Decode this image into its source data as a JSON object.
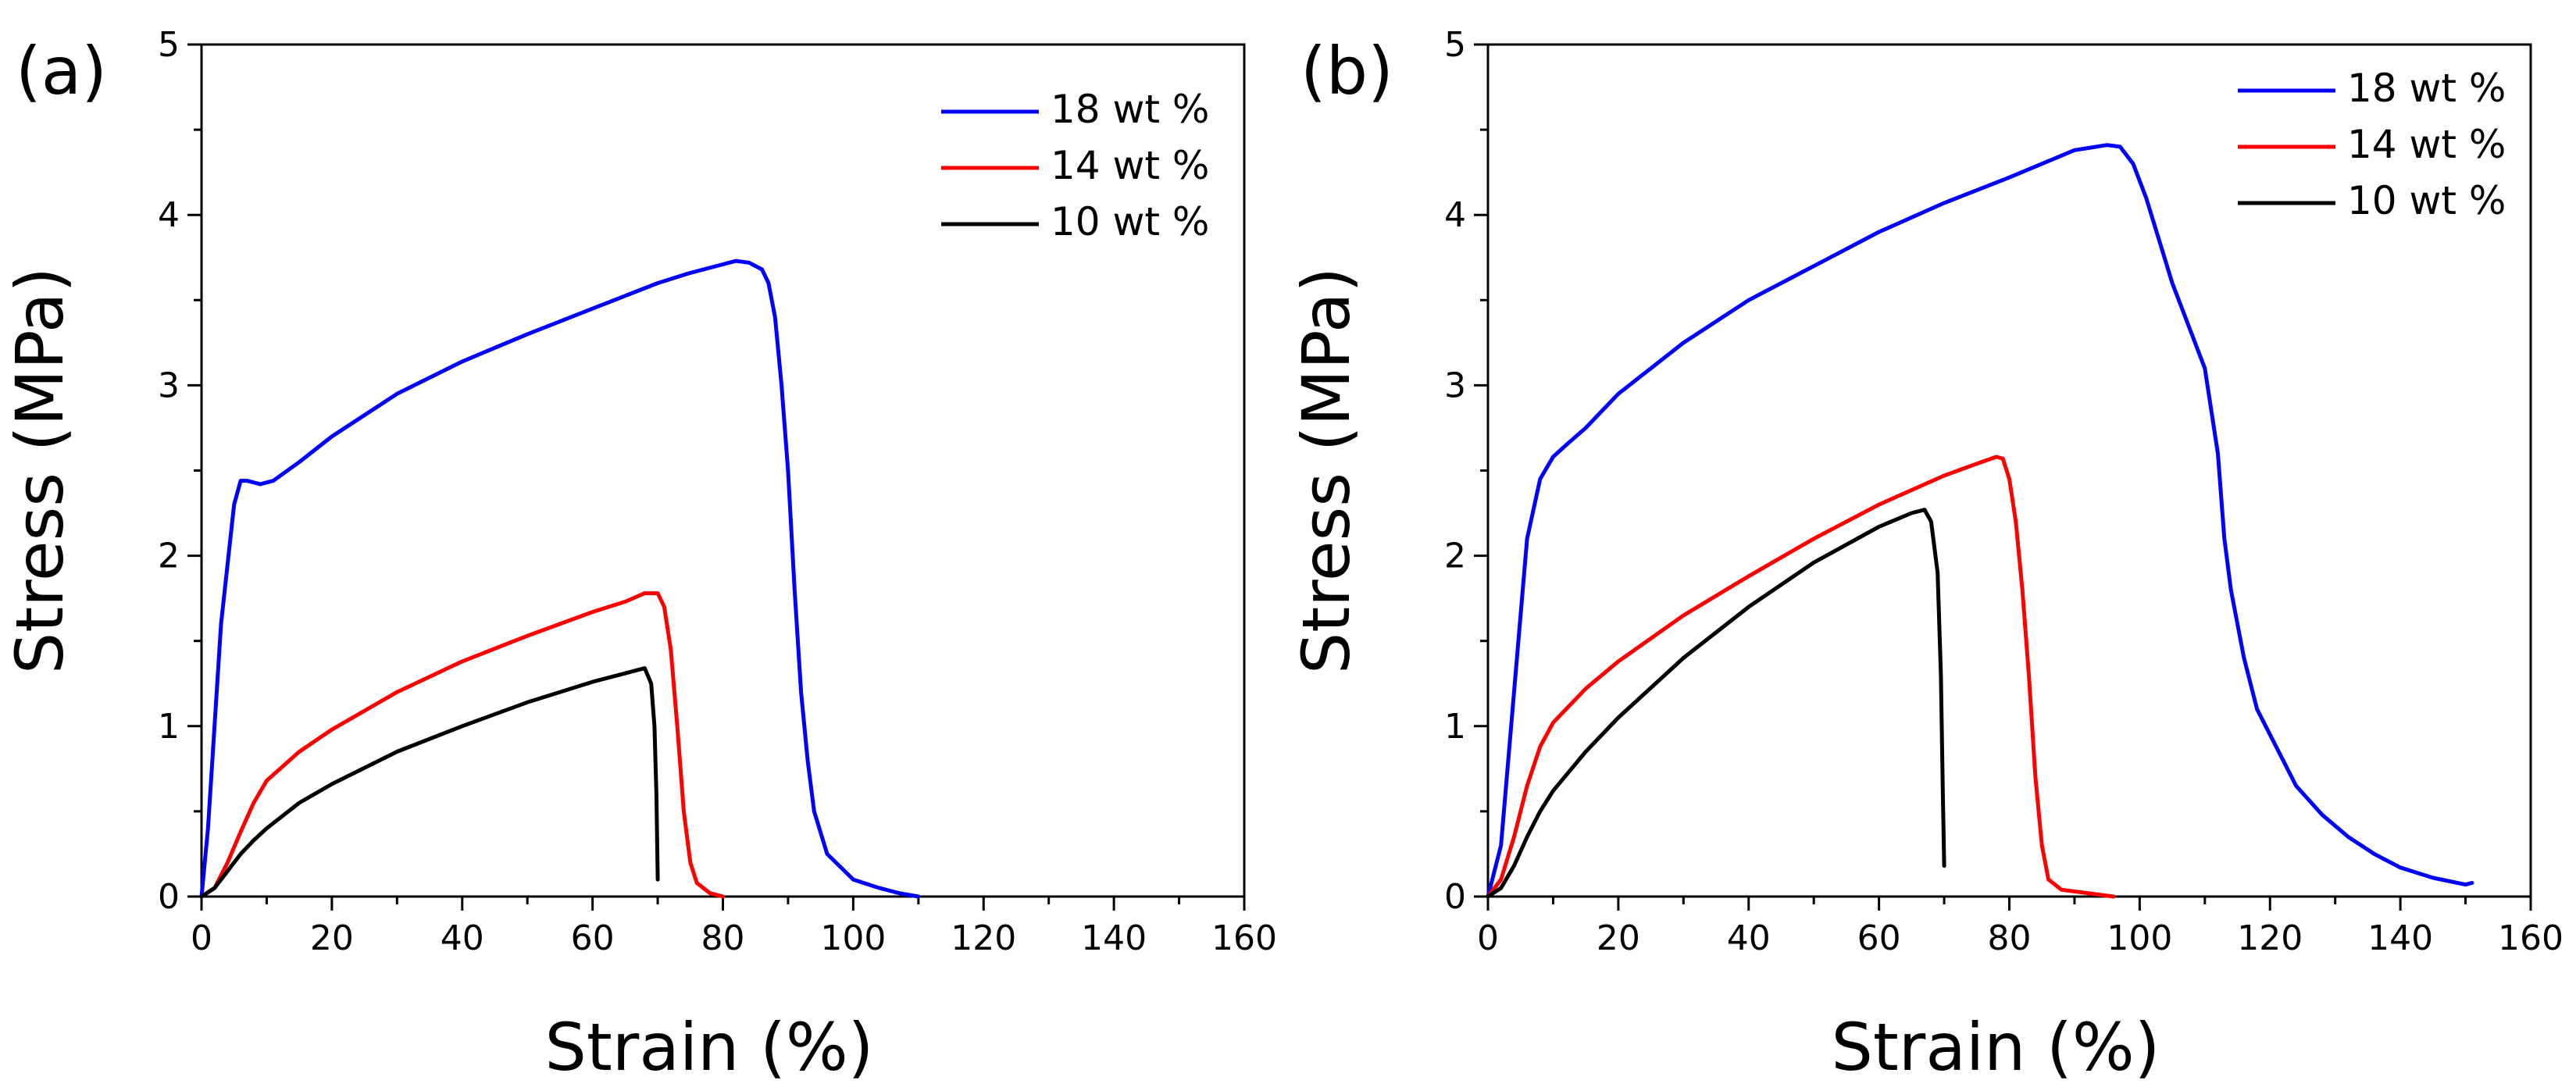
{
  "chart_data": [
    {
      "type": "line",
      "panel_label": "(a)",
      "xlabel": "Strain (%)",
      "ylabel": "Stress (MPa)",
      "xlim": [
        0,
        160
      ],
      "ylim": [
        0,
        5
      ],
      "xticks": [
        "0",
        "20",
        "40",
        "60",
        "80",
        "100",
        "120",
        "140",
        "160"
      ],
      "yticks": [
        "0",
        "1",
        "2",
        "3",
        "4",
        "5"
      ],
      "legend_position": "top-right",
      "series": [
        {
          "name": "18 wt %",
          "color": "#0000ff",
          "x": [
            0,
            1,
            3,
            5,
            6,
            7,
            9,
            11,
            15,
            20,
            30,
            40,
            50,
            60,
            70,
            75,
            80,
            82,
            84,
            86,
            87,
            88,
            89,
            90,
            91,
            92,
            93,
            94,
            96,
            100,
            104,
            107,
            110
          ],
          "y": [
            0,
            0.4,
            1.6,
            2.3,
            2.44,
            2.44,
            2.42,
            2.44,
            2.55,
            2.7,
            2.95,
            3.14,
            3.3,
            3.45,
            3.6,
            3.66,
            3.71,
            3.73,
            3.72,
            3.68,
            3.6,
            3.4,
            3.0,
            2.5,
            1.8,
            1.2,
            0.8,
            0.5,
            0.25,
            0.1,
            0.05,
            0.02,
            0
          ]
        },
        {
          "name": "14 wt %",
          "color": "#ff0000",
          "x": [
            0,
            2,
            4,
            6,
            8,
            10,
            15,
            20,
            30,
            40,
            50,
            60,
            65,
            68,
            70,
            71,
            72,
            73,
            74,
            75,
            76,
            78,
            80
          ],
          "y": [
            0,
            0.05,
            0.2,
            0.38,
            0.55,
            0.68,
            0.85,
            0.98,
            1.2,
            1.38,
            1.53,
            1.67,
            1.73,
            1.78,
            1.78,
            1.7,
            1.45,
            1.0,
            0.5,
            0.2,
            0.08,
            0.02,
            0
          ]
        },
        {
          "name": "10 wt %",
          "color": "#000000",
          "x": [
            0,
            2,
            4,
            6,
            8,
            10,
            15,
            20,
            30,
            40,
            50,
            60,
            65,
            68,
            69,
            69.5,
            69.8,
            70
          ],
          "y": [
            0,
            0.05,
            0.15,
            0.25,
            0.33,
            0.4,
            0.55,
            0.66,
            0.85,
            1.0,
            1.14,
            1.26,
            1.31,
            1.34,
            1.25,
            1.0,
            0.6,
            0.1
          ]
        }
      ]
    },
    {
      "type": "line",
      "panel_label": "(b)",
      "xlabel": "Strain (%)",
      "ylabel": "Stress (MPa)",
      "xlim": [
        0,
        160
      ],
      "ylim": [
        0,
        5
      ],
      "xticks": [
        "0",
        "20",
        "40",
        "60",
        "80",
        "100",
        "120",
        "140",
        "160"
      ],
      "yticks": [
        "0",
        "1",
        "2",
        "3",
        "4",
        "5"
      ],
      "legend_position": "top-right",
      "series": [
        {
          "name": "18 wt %",
          "color": "#0000ff",
          "x": [
            0,
            2,
            4,
            6,
            8,
            10,
            12,
            15,
            20,
            30,
            40,
            50,
            60,
            70,
            80,
            90,
            95,
            97,
            99,
            101,
            103,
            105,
            107,
            110,
            112,
            113,
            114,
            116,
            118,
            120,
            124,
            128,
            132,
            136,
            140,
            145,
            150,
            151
          ],
          "y": [
            0,
            0.3,
            1.2,
            2.1,
            2.45,
            2.58,
            2.65,
            2.75,
            2.95,
            3.25,
            3.5,
            3.7,
            3.9,
            4.07,
            4.22,
            4.38,
            4.41,
            4.4,
            4.3,
            4.1,
            3.85,
            3.6,
            3.4,
            3.1,
            2.6,
            2.1,
            1.8,
            1.4,
            1.1,
            0.95,
            0.65,
            0.48,
            0.35,
            0.25,
            0.17,
            0.11,
            0.07,
            0.08
          ]
        },
        {
          "name": "14 wt %",
          "color": "#ff0000",
          "x": [
            0,
            2,
            4,
            6,
            8,
            10,
            15,
            20,
            30,
            40,
            50,
            60,
            70,
            75,
            78,
            79,
            80,
            81,
            82,
            83,
            84,
            85,
            86,
            88,
            92,
            96
          ],
          "y": [
            0,
            0.1,
            0.35,
            0.65,
            0.88,
            1.02,
            1.22,
            1.38,
            1.65,
            1.88,
            2.1,
            2.3,
            2.47,
            2.54,
            2.58,
            2.57,
            2.45,
            2.2,
            1.8,
            1.3,
            0.7,
            0.3,
            0.1,
            0.04,
            0.02,
            0
          ]
        },
        {
          "name": "10 wt %",
          "color": "#000000",
          "x": [
            0,
            2,
            4,
            6,
            8,
            10,
            15,
            20,
            30,
            40,
            50,
            60,
            65,
            67,
            68,
            69,
            69.5,
            69.8,
            70
          ],
          "y": [
            0,
            0.05,
            0.18,
            0.35,
            0.5,
            0.62,
            0.85,
            1.05,
            1.4,
            1.7,
            1.96,
            2.17,
            2.25,
            2.27,
            2.2,
            1.9,
            1.3,
            0.6,
            0.18
          ]
        }
      ]
    }
  ]
}
